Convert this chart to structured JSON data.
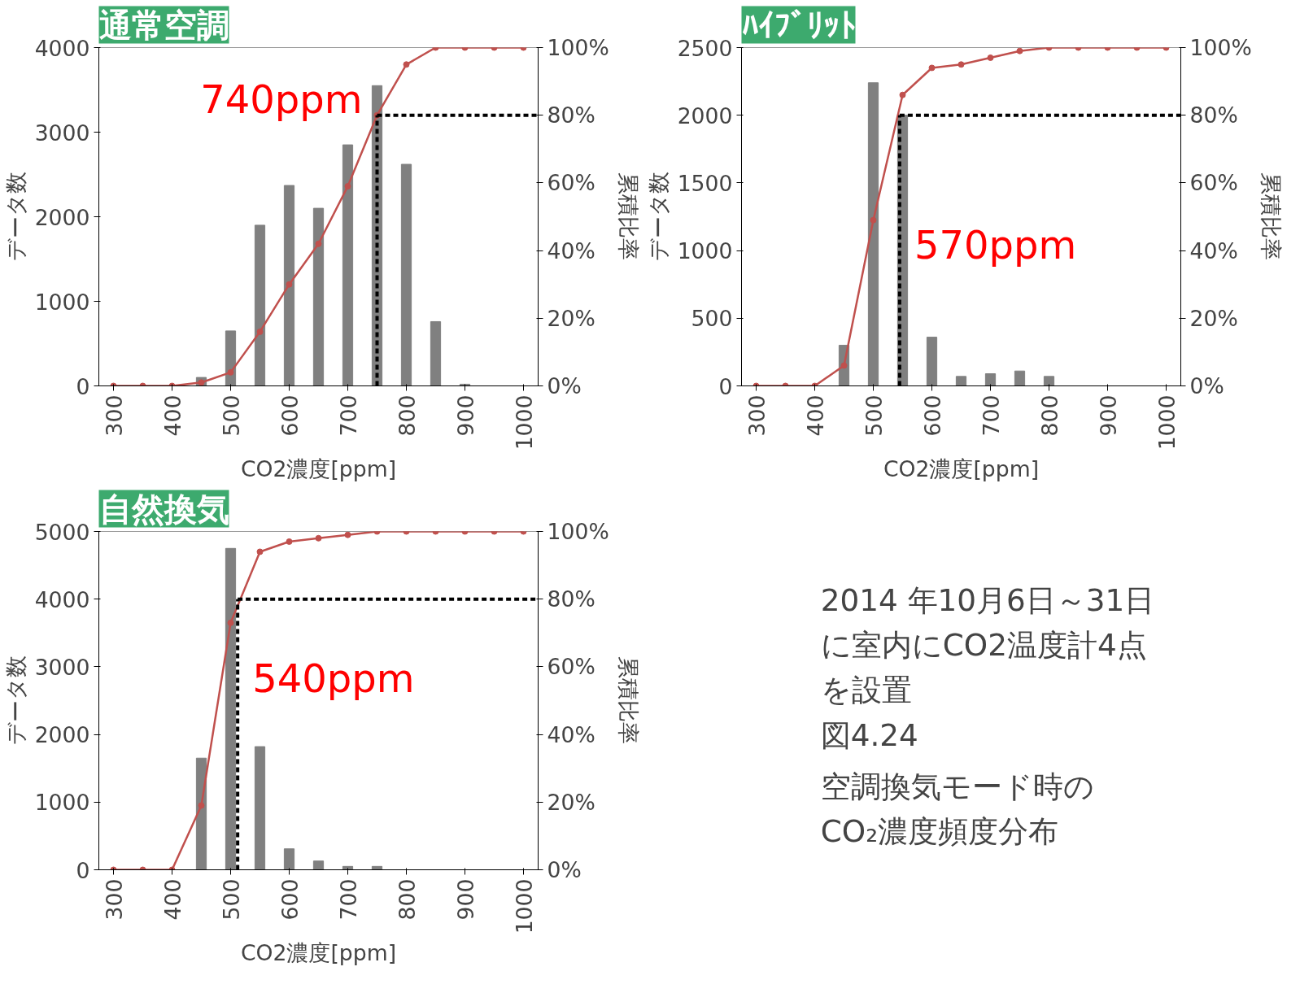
{
  "chart_data": [
    {
      "type": "bar",
      "title": "通常空調",
      "xlabel": "CO2濃度[ppm]",
      "ylabel": "データ数",
      "y2label": "累積比率",
      "x": [
        300,
        350,
        400,
        450,
        500,
        550,
        600,
        650,
        700,
        750,
        800,
        850,
        900,
        950,
        1000
      ],
      "series": [
        {
          "type": "bar",
          "color": "#808080",
          "values": [
            0,
            0,
            0,
            100,
            650,
            1900,
            2370,
            2100,
            2850,
            3550,
            2620,
            760,
            20,
            0,
            0
          ]
        },
        {
          "type": "line",
          "axis": "y2",
          "color": "#c0504d",
          "values": [
            0,
            0,
            0,
            1,
            4,
            16,
            30,
            42,
            59,
            80,
            95,
            100,
            100,
            100,
            100
          ]
        }
      ],
      "xlim": [
        275,
        1025
      ],
      "xticks": [
        300,
        400,
        500,
        600,
        700,
        800,
        900,
        1000
      ],
      "ylim": [
        0,
        4000
      ],
      "yticks": [
        0,
        1000,
        2000,
        3000,
        4000
      ],
      "y2lim": [
        0,
        100
      ],
      "y2ticks": [
        {
          "value": 0,
          "label": "0%"
        },
        {
          "value": 20,
          "label": "20%"
        },
        {
          "value": 40,
          "label": "40%"
        },
        {
          "value": 60,
          "label": "60%"
        },
        {
          "value": 80,
          "label": "80%"
        },
        {
          "value": 100,
          "label": "100%"
        }
      ],
      "ref_lines": [
        {
          "axis": "x",
          "value": 750,
          "label": "740ppm",
          "color": "#000000",
          "line_style": "dashed"
        },
        {
          "axis": "y2",
          "value": 80,
          "color": "#000000",
          "line_style": "dashed"
        }
      ],
      "marker": "circle"
    },
    {
      "type": "bar",
      "title": "ﾊｲﾌﾞﾘｯﾄ",
      "xlabel": "CO2濃度[ppm]",
      "ylabel": "データ数",
      "y2label": "累積比率",
      "x": [
        300,
        350,
        400,
        450,
        500,
        550,
        600,
        650,
        700,
        750,
        800,
        850,
        900,
        950,
        1000
      ],
      "series": [
        {
          "type": "bar",
          "color": "#808080",
          "values": [
            0,
            0,
            0,
            300,
            2240,
            2000,
            360,
            70,
            90,
            110,
            70,
            0,
            0,
            0,
            0
          ]
        },
        {
          "type": "line",
          "axis": "y2",
          "color": "#c0504d",
          "values": [
            0,
            0,
            0,
            6,
            49,
            86,
            94,
            95,
            97,
            99,
            100,
            100,
            100,
            100,
            100
          ]
        }
      ],
      "xlim": [
        275,
        1025
      ],
      "xticks": [
        300,
        400,
        500,
        600,
        700,
        800,
        900,
        1000
      ],
      "ylim": [
        0,
        2500
      ],
      "yticks": [
        0,
        500,
        1000,
        1500,
        2000,
        2500
      ],
      "y2lim": [
        0,
        100
      ],
      "y2ticks": [
        {
          "value": 0,
          "label": "0%"
        },
        {
          "value": 20,
          "label": "20%"
        },
        {
          "value": 40,
          "label": "40%"
        },
        {
          "value": 60,
          "label": "60%"
        },
        {
          "value": 80,
          "label": "80%"
        },
        {
          "value": 100,
          "label": "100%"
        }
      ],
      "ref_lines": [
        {
          "axis": "x",
          "value": 545,
          "label": "570ppm",
          "color": "#000000",
          "line_style": "dashed"
        },
        {
          "axis": "y2",
          "value": 80,
          "color": "#000000",
          "line_style": "dashed"
        }
      ],
      "marker": "circle"
    },
    {
      "type": "bar",
      "title": "自然換気",
      "xlabel": "CO2濃度[ppm]",
      "ylabel": "データ数",
      "y2label": "累積比率",
      "x": [
        300,
        350,
        400,
        450,
        500,
        550,
        600,
        650,
        700,
        750,
        800,
        850,
        900,
        950,
        1000
      ],
      "series": [
        {
          "type": "bar",
          "color": "#808080",
          "values": [
            0,
            0,
            0,
            1650,
            4750,
            1820,
            310,
            130,
            50,
            50,
            0,
            0,
            0,
            0,
            0
          ]
        },
        {
          "type": "line",
          "axis": "y2",
          "color": "#c0504d",
          "values": [
            0,
            0,
            0,
            19,
            73,
            94,
            97,
            98,
            99,
            100,
            100,
            100,
            100,
            100,
            100
          ]
        }
      ],
      "xlim": [
        275,
        1025
      ],
      "xticks": [
        300,
        400,
        500,
        600,
        700,
        800,
        900,
        1000
      ],
      "ylim": [
        0,
        5000
      ],
      "yticks": [
        0,
        1000,
        2000,
        3000,
        4000,
        5000
      ],
      "y2lim": [
        0,
        100
      ],
      "y2ticks": [
        {
          "value": 0,
          "label": "0%"
        },
        {
          "value": 20,
          "label": "20%"
        },
        {
          "value": 40,
          "label": "40%"
        },
        {
          "value": 60,
          "label": "60%"
        },
        {
          "value": 80,
          "label": "80%"
        },
        {
          "value": 100,
          "label": "100%"
        }
      ],
      "ref_lines": [
        {
          "axis": "x",
          "value": 512,
          "label": "540ppm",
          "color": "#000000",
          "line_style": "dashed"
        },
        {
          "axis": "y2",
          "value": 80,
          "color": "#000000",
          "line_style": "dashed"
        }
      ],
      "marker": "circle"
    },
    {
      "type": "other",
      "annotations": [
        "2014 年10月6日～31日に室内にCO2温度計4点を設置",
        "図4.24",
        "空調換気モード時のCO₂濃度頻度分布"
      ]
    }
  ]
}
